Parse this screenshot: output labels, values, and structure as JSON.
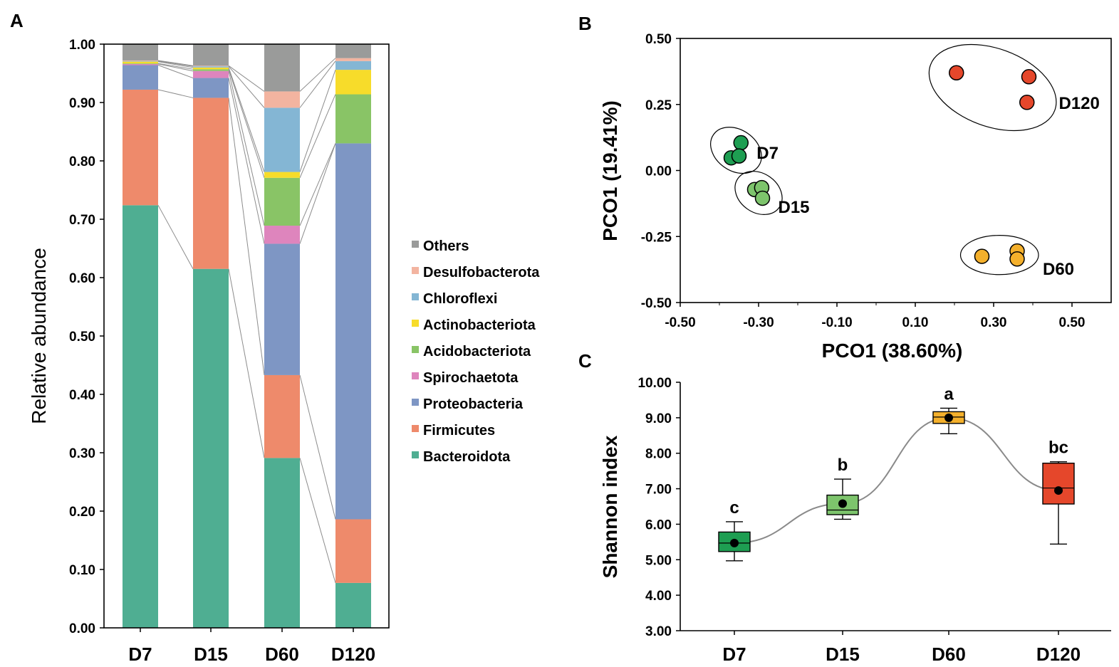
{
  "panels": {
    "a": "A",
    "b": "B",
    "c": "C"
  },
  "colors": {
    "Others": "#9a9b9a",
    "Desulfobacterota": "#f3b4a0",
    "Chloroflexi": "#84b6d4",
    "Actinobacteriota": "#f7dc2a",
    "Acidobacteriota": "#89c466",
    "Spirochaetota": "#de85bd",
    "Proteobacteria": "#7e96c4",
    "Firmicutes": "#ee8a6b",
    "Bacteroidota": "#4fae92",
    "D7": "#1e9e52",
    "D15": "#7dc46c",
    "D60": "#f4b02c",
    "D120": "#e5472b"
  },
  "chart_data": [
    {
      "type": "bar",
      "stacked": true,
      "panel": "A",
      "title": "",
      "xlabel": "",
      "ylabel": "Relative abundance",
      "ylim": [
        0,
        1
      ],
      "yticks": [
        "0.00",
        "0.10",
        "0.20",
        "0.30",
        "0.40",
        "0.50",
        "0.60",
        "0.70",
        "0.80",
        "0.90",
        "1.00"
      ],
      "categories": [
        "D7",
        "D15",
        "D60",
        "D120"
      ],
      "series": [
        {
          "name": "Bacteroidota",
          "values": [
            0.724,
            0.615,
            0.291,
            0.077
          ]
        },
        {
          "name": "Firmicutes",
          "values": [
            0.198,
            0.293,
            0.142,
            0.109
          ]
        },
        {
          "name": "Proteobacteria",
          "values": [
            0.042,
            0.034,
            0.225,
            0.644
          ]
        },
        {
          "name": "Spirochaetota",
          "values": [
            0.002,
            0.012,
            0.031,
            0.0
          ]
        },
        {
          "name": "Acidobacteriota",
          "values": [
            0.001,
            0.003,
            0.082,
            0.084
          ]
        },
        {
          "name": "Actinobacteriota",
          "values": [
            0.003,
            0.003,
            0.01,
            0.042
          ]
        },
        {
          "name": "Chloroflexi",
          "values": [
            0.001,
            0.002,
            0.11,
            0.015
          ]
        },
        {
          "name": "Desulfobacterota",
          "values": [
            0.001,
            0.001,
            0.028,
            0.005
          ]
        },
        {
          "name": "Others",
          "values": [
            0.028,
            0.037,
            0.081,
            0.024
          ]
        }
      ],
      "legend": [
        "Others",
        "Desulfobacterota",
        "Chloroflexi",
        "Actinobacteriota",
        "Acidobacteriota",
        "Spirochaetota",
        "Proteobacteria",
        "Firmicutes",
        "Bacteroidota"
      ],
      "legend_position": "right"
    },
    {
      "type": "scatter",
      "panel": "B",
      "title": "",
      "xlabel": "PCO1 (38.60%)",
      "ylabel": "PCO1 (19.41%)",
      "xlim": [
        -0.5,
        0.6
      ],
      "ylim": [
        -0.5,
        0.5
      ],
      "xticks": [
        "-0.50",
        "-0.30",
        "-0.10",
        "0.10",
        "0.30",
        "0.50"
      ],
      "yticks": [
        "-0.50",
        "-0.25",
        "0.00",
        "0.25",
        "0.50"
      ],
      "groups": [
        {
          "name": "D7",
          "points": [
            [
              -0.345,
              0.105
            ],
            [
              -0.37,
              0.048
            ],
            [
              -0.35,
              0.055
            ]
          ]
        },
        {
          "name": "D15",
          "points": [
            [
              -0.31,
              -0.072
            ],
            [
              -0.292,
              -0.065
            ],
            [
              -0.29,
              -0.105
            ]
          ]
        },
        {
          "name": "D60",
          "points": [
            [
              0.27,
              -0.325
            ],
            [
              0.36,
              -0.305
            ],
            [
              0.36,
              -0.335
            ]
          ]
        },
        {
          "name": "D120",
          "points": [
            [
              0.205,
              0.37
            ],
            [
              0.39,
              0.355
            ],
            [
              0.385,
              0.258
            ]
          ]
        }
      ]
    },
    {
      "type": "box",
      "panel": "C",
      "title": "",
      "xlabel": "",
      "ylabel": "Shannon index",
      "ylim": [
        3,
        10
      ],
      "yticks": [
        "3.00",
        "4.00",
        "5.00",
        "6.00",
        "7.00",
        "8.00",
        "9.00",
        "10.00"
      ],
      "categories": [
        "D7",
        "D15",
        "D60",
        "D120"
      ],
      "boxes": [
        {
          "name": "D7",
          "min": 4.97,
          "q1": 5.23,
          "median": 5.47,
          "q3": 5.78,
          "max": 6.07,
          "mean": 5.47,
          "letter": "c"
        },
        {
          "name": "D15",
          "min": 6.14,
          "q1": 6.27,
          "median": 6.4,
          "q3": 6.82,
          "max": 7.27,
          "mean": 6.58,
          "letter": "b"
        },
        {
          "name": "D60",
          "min": 8.55,
          "q1": 8.84,
          "median": 9.02,
          "q3": 9.17,
          "max": 9.27,
          "mean": 9.0,
          "letter": "a"
        },
        {
          "name": "D120",
          "min": 5.44,
          "q1": 6.57,
          "median": 7.02,
          "q3": 7.72,
          "max": 7.76,
          "mean": 6.95,
          "letter": "bc"
        }
      ]
    }
  ]
}
